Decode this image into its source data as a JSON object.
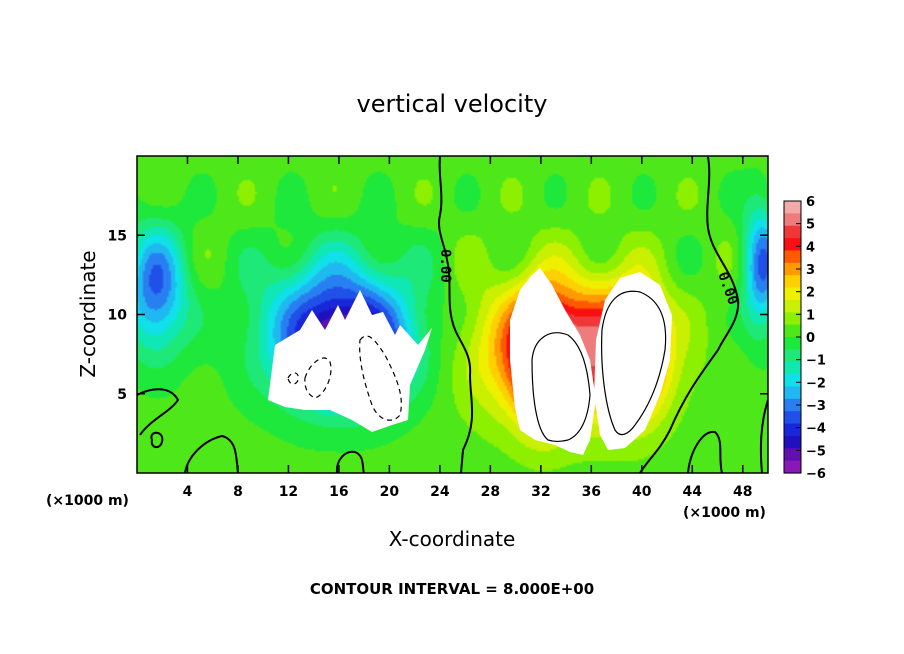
{
  "chart_data": {
    "type": "heatmap",
    "title": "vertical velocity",
    "xlabel": "X-coordinate",
    "ylabel": "Z-coordinate",
    "x_unit_left": "(×1000 m)",
    "x_unit_right": "(×1000 m)",
    "xlim": [
      0,
      50
    ],
    "ylim": [
      0,
      20
    ],
    "x_ticks": [
      4,
      8,
      12,
      16,
      20,
      24,
      28,
      32,
      36,
      40,
      44,
      48
    ],
    "y_ticks": [
      5,
      10,
      15
    ],
    "colorbar": {
      "min": -6,
      "max": 6,
      "tick_labels": [
        "6",
        "5",
        "4",
        "3",
        "2",
        "1",
        "0",
        "−1",
        "−2",
        "−3",
        "−4",
        "−5",
        "−6"
      ],
      "colors": [
        "#f2a9a9",
        "#ee7c7c",
        "#f03838",
        "#fa1010",
        "#ff5a00",
        "#ff9a00",
        "#ffd000",
        "#eef000",
        "#c8f000",
        "#8cf000",
        "#4ee81a",
        "#1ee83c",
        "#1ee878",
        "#10e8b4",
        "#10e0e8",
        "#20b8f0",
        "#2880f0",
        "#2050e8",
        "#1828d8",
        "#2010c0",
        "#6010b0",
        "#8818b8"
      ]
    },
    "contour_labels": [
      "0.00",
      "0.00"
    ],
    "contour_interval_text": "CONTOUR INTERVAL = 8.000E+00",
    "features": [
      {
        "kind": "updraft",
        "x": 34,
        "z": 7.8,
        "sx": 6.5,
        "sz": 4.2,
        "amp": 5
      },
      {
        "kind": "updraft-core",
        "x": 32,
        "z": 7.0,
        "sx": 2.0,
        "sz": 3.8,
        "amp": 3.5
      },
      {
        "kind": "updraft-core",
        "x": 39.5,
        "z": 7.5,
        "sx": 2.3,
        "sz": 3.8,
        "amp": 3.5
      },
      {
        "kind": "downdraft",
        "x": 16,
        "z": 9,
        "sx": 6,
        "sz": 4.5,
        "amp": -4.6
      },
      {
        "kind": "downdraft-core",
        "x": 17,
        "z": 7.5,
        "sx": 3.8,
        "sz": 2.5,
        "amp": -3
      },
      {
        "kind": "downdraft",
        "x": 1.5,
        "z": 11.5,
        "sx": 2.5,
        "sz": 4,
        "amp": -3.5
      },
      {
        "kind": "downdraft",
        "x": 49.5,
        "z": 13,
        "sx": 1.5,
        "sz": 4,
        "amp": -3.5
      }
    ]
  }
}
